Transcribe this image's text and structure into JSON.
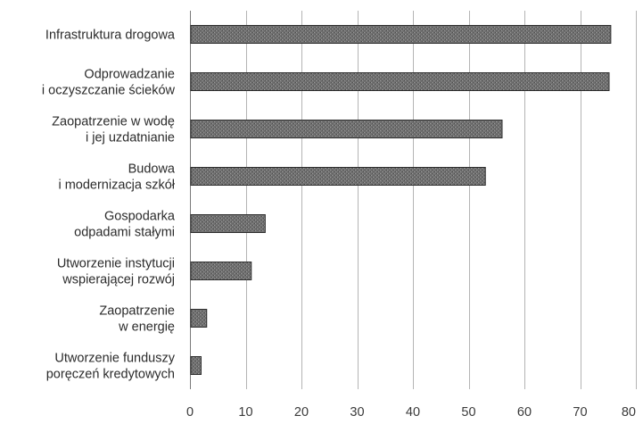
{
  "chart_data": {
    "type": "bar",
    "orientation": "horizontal",
    "title": "",
    "xlabel": "",
    "ylabel": "",
    "categories": [
      [
        "Infrastruktura drogowa"
      ],
      [
        "Odprowadzanie",
        "i oczyszczanie ścieków"
      ],
      [
        "Zaopatrzenie w wodę",
        "i jej uzdatnianie"
      ],
      [
        "Budowa",
        "i modernizacja szkół"
      ],
      [
        "Gospodarka",
        "odpadami stałymi"
      ],
      [
        "Utworzenie instytucji",
        "wspierającej rozwój"
      ],
      [
        "Zaopatrzenie",
        "w energię"
      ],
      [
        "Utworzenie funduszy",
        "poręczeń kredytowych"
      ]
    ],
    "values": [
      75.5,
      75.2,
      56,
      53,
      13.5,
      11,
      3,
      2
    ],
    "xlim": [
      0,
      80
    ],
    "xticks": [
      "0",
      "10",
      "20",
      "30",
      "40",
      "50",
      "60",
      "70",
      "80"
    ],
    "grid": true,
    "legend": "none",
    "colors": {
      "bar_fill": "#6e6e6e",
      "bar_stroke": "#2e2e2e",
      "grid": "#b4b4b4"
    }
  }
}
